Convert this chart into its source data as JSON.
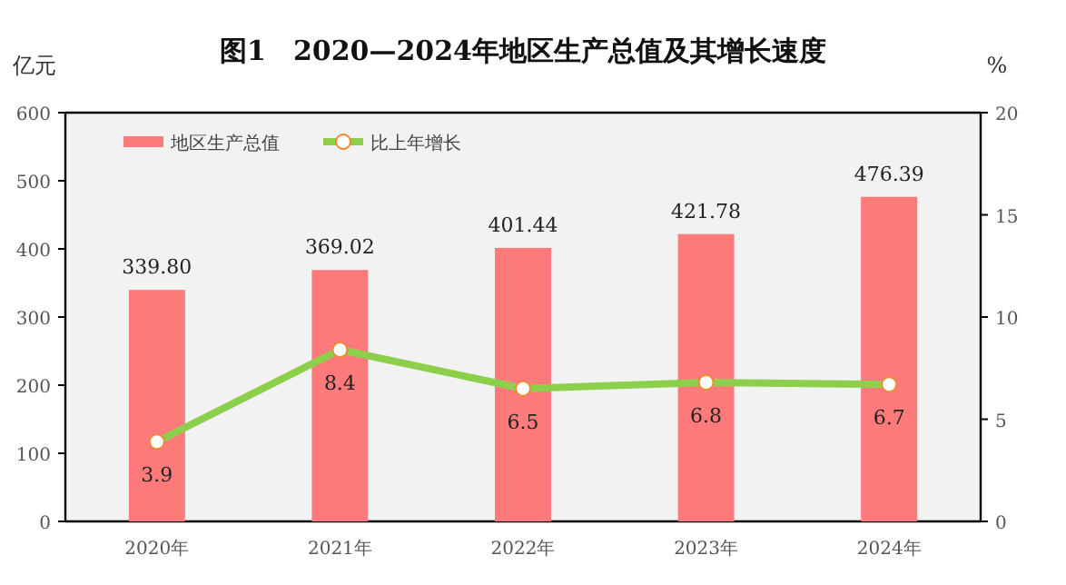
{
  "chart_data": {
    "type": "bar",
    "title": "图1　2020—2024年地区生产总值及其增长速度",
    "ylabel": "亿元",
    "y2label": "%",
    "categories": [
      "2020年",
      "2021年",
      "2022年",
      "2023年",
      "2024年"
    ],
    "series": [
      {
        "name": "地区生产总值",
        "color": "#ff7b7b",
        "values": [
          339.8,
          369.02,
          401.44,
          421.78,
          476.39
        ],
        "value_labels": [
          "339.80",
          "369.02",
          "401.44",
          "421.78",
          "476.39"
        ]
      },
      {
        "name": "比上年增长",
        "type": "line",
        "color": "#8ccf4b",
        "axis": "y2",
        "marker": "circle",
        "values": [
          3.9,
          8.4,
          6.5,
          6.8,
          6.7
        ]
      }
    ],
    "ylim": [
      0,
      600
    ],
    "yticks": [
      0,
      100,
      200,
      300,
      400,
      500,
      600
    ],
    "y2lim": [
      0,
      20
    ],
    "y2ticks": [
      0,
      5,
      10,
      15,
      20
    ],
    "data_labels": true,
    "legend": "top left",
    "grid": false
  }
}
